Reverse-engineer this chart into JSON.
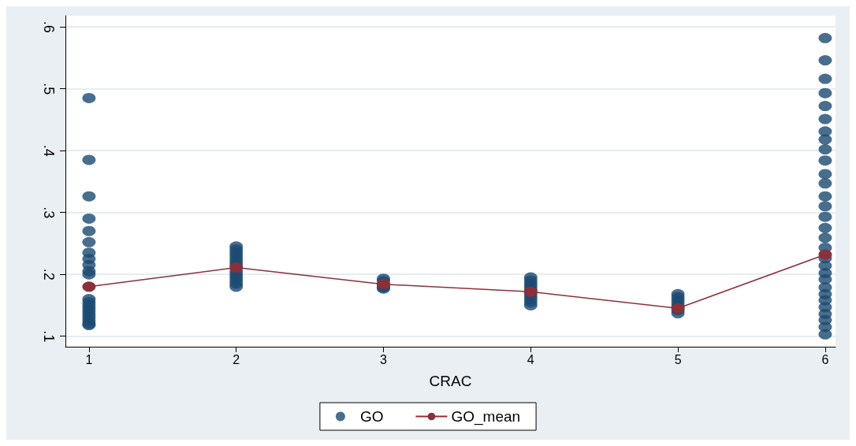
{
  "chart_data": {
    "type": "scatter",
    "xlabel": "CRAC",
    "xlim": [
      0.84,
      6.07
    ],
    "xticks": [
      1,
      2,
      3,
      4,
      5,
      6
    ],
    "ylim": [
      0.083,
      0.618
    ],
    "yticks": [
      {
        "value": 0.1,
        "label": ".1"
      },
      {
        "value": 0.2,
        "label": ".2"
      },
      {
        "value": 0.3,
        "label": ".3"
      },
      {
        "value": 0.4,
        "label": ".4"
      },
      {
        "value": 0.5,
        "label": ".5"
      },
      {
        "value": 0.6,
        "label": ".6"
      }
    ],
    "grid": "y",
    "legend": "bottom",
    "marker": "circle",
    "series": [
      {
        "name": "GO",
        "color": "#1a4a72",
        "x": [
          1,
          1,
          1,
          1,
          1,
          1,
          1,
          1,
          1,
          1,
          1,
          1,
          1,
          1,
          1,
          1,
          1,
          1,
          1,
          1,
          1,
          2,
          2,
          2,
          2,
          2,
          2,
          2,
          2,
          2,
          2,
          2,
          2,
          2,
          3,
          3,
          3,
          3,
          3,
          4,
          4,
          4,
          4,
          4,
          4,
          4,
          4,
          4,
          4,
          5,
          5,
          5,
          5,
          5,
          5,
          5,
          6,
          6,
          6,
          6,
          6,
          6,
          6,
          6,
          6,
          6,
          6,
          6,
          6,
          6,
          6,
          6,
          6,
          6,
          6,
          6,
          6,
          6,
          6,
          6,
          6,
          6,
          6,
          6,
          6,
          6
        ],
        "values": [
          0.485,
          0.385,
          0.326,
          0.29,
          0.27,
          0.252,
          0.235,
          0.225,
          0.215,
          0.205,
          0.2,
          0.16,
          0.155,
          0.15,
          0.145,
          0.14,
          0.135,
          0.13,
          0.125,
          0.12,
          0.118,
          0.245,
          0.24,
          0.235,
          0.23,
          0.225,
          0.22,
          0.215,
          0.205,
          0.2,
          0.195,
          0.19,
          0.185,
          0.18,
          0.193,
          0.189,
          0.182,
          0.179,
          0.177,
          0.195,
          0.19,
          0.185,
          0.18,
          0.175,
          0.17,
          0.165,
          0.16,
          0.155,
          0.15,
          0.168,
          0.163,
          0.158,
          0.153,
          0.148,
          0.142,
          0.137,
          0.582,
          0.546,
          0.516,
          0.493,
          0.472,
          0.451,
          0.431,
          0.418,
          0.402,
          0.384,
          0.362,
          0.347,
          0.326,
          0.31,
          0.293,
          0.275,
          0.259,
          0.243,
          0.226,
          0.214,
          0.202,
          0.192,
          0.179,
          0.168,
          0.158,
          0.147,
          0.136,
          0.126,
          0.115,
          0.103
        ]
      },
      {
        "name": "GO_mean",
        "type": "line",
        "color": "#8b3039",
        "x": [
          1,
          2,
          3,
          4,
          5,
          6
        ],
        "values": [
          0.18,
          0.211,
          0.184,
          0.172,
          0.145,
          0.232
        ]
      }
    ]
  }
}
